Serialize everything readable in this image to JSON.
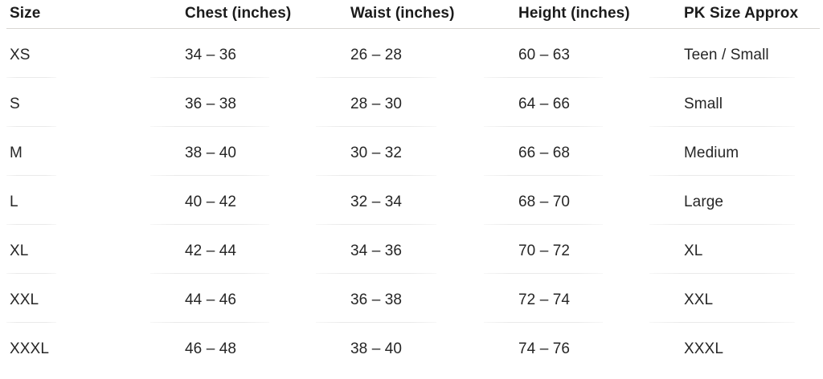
{
  "table": {
    "headers": [
      "Size",
      "Chest (inches)",
      "Waist (inches)",
      "Height (inches)",
      "PK Size Approx"
    ],
    "rows": [
      [
        "XS",
        "34 – 36",
        "26 – 28",
        "60 – 63",
        "Teen / Small"
      ],
      [
        "S",
        "36 – 38",
        "28 – 30",
        "64 – 66",
        "Small"
      ],
      [
        "M",
        "38 – 40",
        "30 – 32",
        "66 – 68",
        "Medium"
      ],
      [
        "L",
        "40 – 42",
        "32 – 34",
        "68 – 70",
        "Large"
      ],
      [
        "XL",
        "42 – 44",
        "34 – 36",
        "70 – 72",
        "XL"
      ],
      [
        "XXL",
        "44 – 46",
        "36 – 38",
        "72 – 74",
        "XXL"
      ],
      [
        "XXXL",
        "46 – 48",
        "38 – 40",
        "74 – 76",
        "XXXL"
      ]
    ],
    "colors": {
      "header_text": "#1b1b1b",
      "body_text": "#262626",
      "header_divider": "#d9d6d2",
      "row_divider": "#eaeaea",
      "background": "#ffffff"
    }
  }
}
